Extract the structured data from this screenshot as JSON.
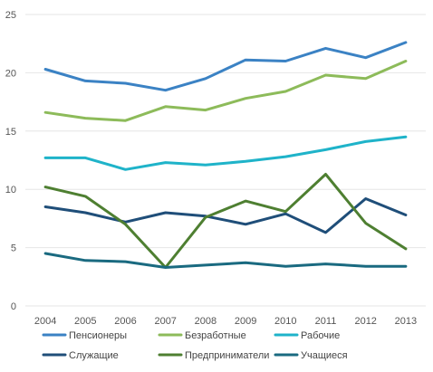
{
  "chart_data": {
    "type": "line",
    "title": "",
    "xlabel": "",
    "ylabel": "",
    "categories": [
      "2004",
      "2005",
      "2006",
      "2007",
      "2008",
      "2009",
      "2010",
      "2011",
      "2012",
      "2013"
    ],
    "ylim": [
      0,
      25
    ],
    "yticks": [
      0,
      5,
      10,
      15,
      20,
      25
    ],
    "grid": true,
    "legend_position": "bottom",
    "series": [
      {
        "name": "Пенсионеры",
        "color": "#3b82c4",
        "values": [
          20.3,
          19.3,
          19.1,
          18.5,
          19.5,
          21.1,
          21.0,
          22.1,
          21.3,
          22.6
        ]
      },
      {
        "name": "Безработные",
        "color": "#8dbb5a",
        "values": [
          16.6,
          16.1,
          15.9,
          17.1,
          16.8,
          17.8,
          18.4,
          19.8,
          19.5,
          21.0
        ]
      },
      {
        "name": "Рабочие",
        "color": "#1fb3c9",
        "values": [
          12.7,
          12.7,
          11.7,
          12.3,
          12.1,
          12.4,
          12.8,
          13.4,
          14.1,
          14.5
        ]
      },
      {
        "name": "Служащие",
        "color": "#1f4e79",
        "values": [
          8.5,
          8.0,
          7.2,
          8.0,
          7.7,
          7.0,
          7.9,
          6.3,
          9.2,
          7.8
        ]
      },
      {
        "name": "Предприниматели",
        "color": "#4e7f31",
        "values": [
          10.2,
          9.4,
          7.0,
          3.3,
          7.6,
          9.0,
          8.1,
          11.3,
          7.1,
          4.9
        ]
      },
      {
        "name": "Учащиеся",
        "color": "#1a6a80",
        "values": [
          4.5,
          3.9,
          3.8,
          3.3,
          3.5,
          3.7,
          3.4,
          3.6,
          3.4,
          3.4
        ]
      }
    ]
  }
}
